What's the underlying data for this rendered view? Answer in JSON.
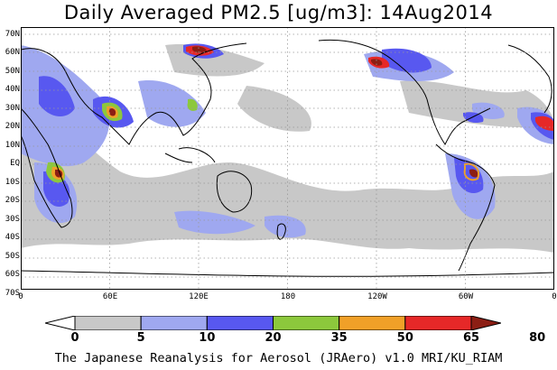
{
  "title": "Daily Averaged PM2.5 [ug/m3]: 14Aug2014",
  "footer": "The Japanese Reanalysis for Aerosol (JRAero) v1.0 MRI/KU_RIAM",
  "lat_labels": [
    "70N",
    "60N",
    "50N",
    "40N",
    "30N",
    "20N",
    "10N",
    "EQ",
    "10S",
    "20S",
    "30S",
    "40S",
    "50S",
    "60S",
    "70S"
  ],
  "lon_labels": [
    "0",
    "60E",
    "120E",
    "180",
    "120W",
    "60W",
    "0"
  ],
  "colorbar": {
    "levels": [
      "0",
      "5",
      "10",
      "20",
      "35",
      "50",
      "65",
      "80"
    ],
    "colors": [
      "#ffffff",
      "#c8c8c8",
      "#9fa8f0",
      "#5858f0",
      "#8cc83c",
      "#f0a028",
      "#e62828",
      "#8c1e14"
    ]
  }
}
